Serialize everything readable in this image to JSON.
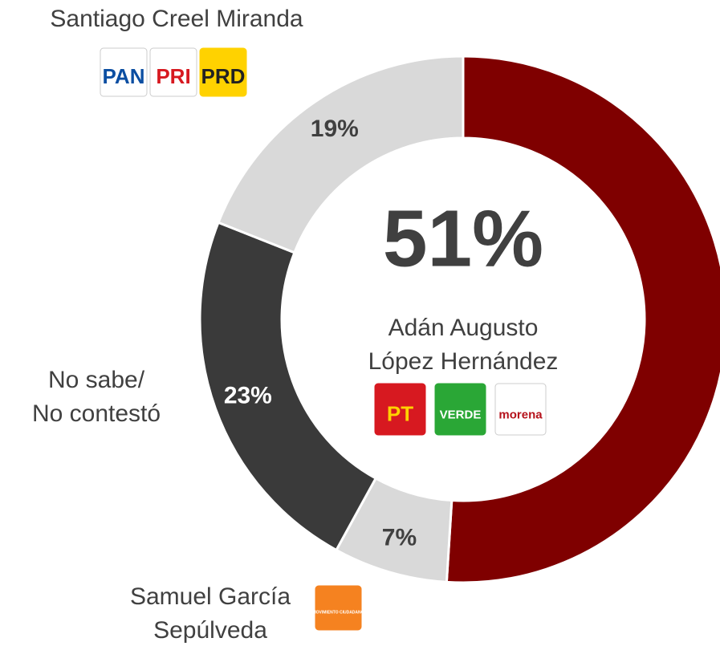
{
  "chart_data": {
    "type": "donut",
    "categories": [
      [
        "Adán Augusto",
        "López Hernández"
      ],
      [
        "Samuel García",
        "Sepúlveda"
      ],
      [
        "No sabe/",
        "No contestó"
      ],
      [
        "Santiago Creel Miranda"
      ]
    ],
    "values": [
      51,
      7,
      23,
      19
    ],
    "value_labels": [
      "51%",
      "7%",
      "23%",
      "19%"
    ],
    "colors": [
      "#7f0000",
      "#d9d9d9",
      "#3a3a3a",
      "#d9d9d9"
    ],
    "logos": [
      [
        "PT",
        "VERDE",
        "morena"
      ],
      [
        "MOVIMIENTO CIUDADANO"
      ],
      [],
      [
        "PAN",
        "PRI",
        "PRD"
      ]
    ]
  }
}
